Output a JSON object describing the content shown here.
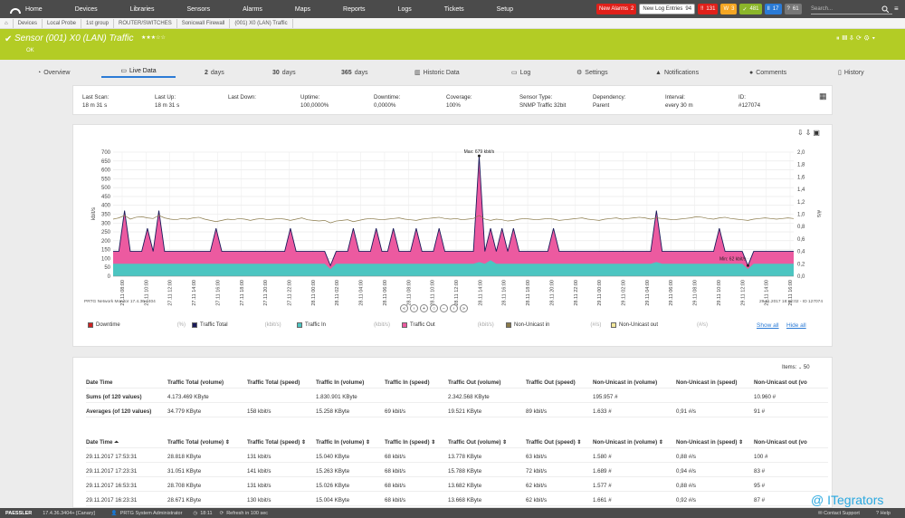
{
  "nav": {
    "items": [
      "Home",
      "Devices",
      "Libraries",
      "Sensors",
      "Alarms",
      "Maps",
      "Reports",
      "Logs",
      "Tickets",
      "Setup"
    ],
    "new_alarms": "New Alarms",
    "new_alarms_count": "2",
    "new_log": "New Log Entries",
    "new_log_count": "94",
    "badges": [
      {
        "icon": "!!",
        "count": "131",
        "color": "#e0201a"
      },
      {
        "icon": "W",
        "count": "3",
        "color": "#f5a623"
      },
      {
        "icon": "✓",
        "count": "481",
        "color": "#8bb62a"
      },
      {
        "icon": "II",
        "count": "17",
        "color": "#2b7bd6"
      },
      {
        "icon": "?",
        "count": "61",
        "color": "#777777"
      }
    ],
    "search_placeholder": "Search..."
  },
  "breadcrumbs": [
    "Devices",
    "Local Probe",
    "1st group",
    "ROUTER/SWITCHES",
    "Sonicwall Firewall",
    "(001) X0 (LAN) Traffic"
  ],
  "sensor": {
    "title": "Sensor (001) X0 (LAN) Traffic",
    "stars": "★★★☆☆",
    "status": "OK"
  },
  "tabs": {
    "overview": "Overview",
    "live": "Live Data",
    "d2": "2",
    "d30": "30",
    "d365": "365",
    "days": "days",
    "historic": "Historic Data",
    "log": "Log",
    "settings": "Settings",
    "notifications": "Notifications",
    "comments": "Comments",
    "history": "History"
  },
  "info": [
    {
      "label": "Last Scan:",
      "value": "18 m 31 s"
    },
    {
      "label": "Last Up:",
      "value": "18 m 31 s"
    },
    {
      "label": "Last Down:",
      "value": ""
    },
    {
      "label": "Uptime:",
      "value": "100,0000%"
    },
    {
      "label": "Downtime:",
      "value": "0,0000%"
    },
    {
      "label": "Coverage:",
      "value": "100%"
    },
    {
      "label": "Sensor Type:",
      "value": "SNMP Traffic 32bit"
    },
    {
      "label": "Dependency:",
      "value": "Parent"
    },
    {
      "label": "Interval:",
      "value": "every 30 m"
    },
    {
      "label": "ID:",
      "value": "#127074"
    }
  ],
  "chart_data": {
    "type": "area",
    "ylabel": "kbit/s",
    "y2label": "#/s",
    "ylim": [
      0,
      700
    ],
    "y2lim": [
      0,
      2.0
    ],
    "yticks": [
      "0",
      "50",
      "100",
      "150",
      "200",
      "250",
      "300",
      "350",
      "400",
      "450",
      "500",
      "550",
      "600",
      "650",
      "700"
    ],
    "y2ticks": [
      "0,0",
      "0,2",
      "0,4",
      "0,6",
      "0,8",
      "1,0",
      "1,2",
      "1,4",
      "1,6",
      "1,8",
      "2,0"
    ],
    "xticks": [
      "27.11 08:00",
      "27.11 10:00",
      "27.11 12:00",
      "27.11 14:00",
      "27.11 16:00",
      "27.11 18:00",
      "27.11 20:00",
      "27.11 22:00",
      "28.11 00:00",
      "28.11 02:00",
      "28.11 04:00",
      "28.11 06:00",
      "28.11 08:00",
      "28.11 10:00",
      "28.11 12:00",
      "28.11 14:00",
      "28.11 16:00",
      "28.11 18:00",
      "28.11 20:00",
      "28.11 22:00",
      "29.11 00:00",
      "29.11 02:00",
      "29.11 04:00",
      "29.11 06:00",
      "29.11 08:00",
      "29.11 10:00",
      "29.11 12:00",
      "29.11 14:00",
      "29.11 16:00"
    ],
    "max_label": "Max: 679 kbit/s",
    "min_label": "Min: 62 kbit/s",
    "footer_left": "PRTG Network Monitor 17.4.36.3404",
    "footer_right": "29.11.2017 18:12:02 - ID 127074",
    "series": [
      {
        "name": "Traffic Total",
        "unit": "(kbit/s)",
        "color": "#1a1a5a",
        "values": [
          140,
          140,
          370,
          140,
          140,
          140,
          270,
          140,
          370,
          140,
          140,
          140,
          140,
          140,
          140,
          140,
          140,
          140,
          270,
          140,
          140,
          140,
          140,
          140,
          140,
          140,
          140,
          140,
          140,
          140,
          140,
          270,
          140,
          140,
          140,
          140,
          140,
          140,
          60,
          140,
          140,
          140,
          270,
          140,
          140,
          140,
          270,
          140,
          140,
          270,
          140,
          140,
          140,
          270,
          140,
          140,
          140,
          270,
          140,
          140,
          140,
          140,
          140,
          140,
          679,
          140,
          270,
          140,
          270,
          140,
          270,
          140,
          140,
          140,
          140,
          140,
          140,
          270,
          140,
          140,
          140,
          140,
          140,
          140,
          140,
          140,
          140,
          140,
          140,
          140,
          140,
          140,
          140,
          140,
          140,
          370,
          140,
          140,
          140,
          140,
          140,
          140,
          140,
          140,
          140,
          140,
          270,
          140,
          140,
          140,
          140,
          60,
          140,
          140,
          140,
          140,
          140,
          140,
          140,
          140
        ]
      },
      {
        "name": "Traffic In",
        "unit": "(kbit/s)",
        "color": "#4cc5c1",
        "values": [
          70,
          70,
          70,
          70,
          70,
          70,
          70,
          70,
          70,
          70,
          70,
          70,
          70,
          70,
          70,
          70,
          70,
          70,
          70,
          70,
          70,
          70,
          70,
          70,
          70,
          70,
          70,
          70,
          70,
          70,
          70,
          70,
          70,
          70,
          70,
          70,
          70,
          70,
          40,
          70,
          70,
          70,
          70,
          70,
          70,
          70,
          70,
          70,
          70,
          70,
          70,
          70,
          70,
          70,
          70,
          70,
          70,
          70,
          70,
          70,
          70,
          70,
          70,
          70,
          80,
          70,
          90,
          70,
          70,
          70,
          70,
          70,
          70,
          70,
          70,
          70,
          70,
          70,
          70,
          70,
          70,
          70,
          70,
          70,
          70,
          70,
          70,
          70,
          70,
          70,
          70,
          70,
          70,
          70,
          70,
          80,
          70,
          70,
          70,
          70,
          70,
          70,
          70,
          70,
          70,
          70,
          70,
          70,
          70,
          70,
          70,
          40,
          70,
          70,
          70,
          70,
          70,
          70,
          70,
          70
        ]
      },
      {
        "name": "Non-Unicast in",
        "unit": "(#/s)",
        "color": "#8a7a4a",
        "values": [
          0.92,
          0.94,
          0.98,
          0.92,
          0.95,
          0.96,
          0.94,
          0.93,
          0.98,
          0.94,
          0.92,
          0.91,
          0.93,
          0.92,
          0.94,
          0.95,
          0.92,
          0.9,
          0.88,
          0.9,
          0.92,
          0.91,
          0.93,
          0.92,
          0.9,
          0.92,
          0.93,
          0.91,
          0.92,
          0.93,
          0.92,
          0.9,
          0.92,
          0.94,
          0.91,
          0.9,
          0.89,
          0.9,
          0.86,
          0.89,
          0.9,
          0.91,
          0.88,
          0.9,
          0.92,
          0.93,
          0.92,
          0.91,
          0.92,
          0.93,
          0.94,
          0.92,
          0.91,
          0.9,
          0.92,
          0.93,
          0.94,
          0.95,
          0.93,
          0.92,
          0.93,
          0.91,
          0.92,
          0.93,
          0.98,
          0.92,
          0.9,
          0.92,
          0.91,
          0.89,
          0.9,
          0.92,
          0.93,
          0.92,
          0.91,
          0.92,
          0.93,
          0.92,
          0.9,
          0.91,
          0.92,
          0.93,
          0.94,
          0.92,
          0.91,
          0.9,
          0.92,
          0.93,
          0.94,
          0.92,
          0.93,
          0.94,
          0.95,
          0.94,
          0.92,
          0.94,
          0.93,
          0.92,
          0.91,
          0.92,
          0.93,
          0.94,
          0.96,
          0.95,
          0.93,
          0.92,
          0.94,
          0.95,
          0.93,
          0.92,
          0.91,
          0.9,
          0.92,
          0.93,
          0.94,
          0.93,
          0.92,
          0.93,
          0.94,
          0.93
        ]
      }
    ]
  },
  "legend": [
    {
      "name": "Downtime",
      "unit": "(%)",
      "color": "#cc2222"
    },
    {
      "name": "Traffic Total",
      "unit": "(kbit/s)",
      "color": "#1a1a5a"
    },
    {
      "name": "Traffic In",
      "unit": "(kbit/s)",
      "color": "#4cc5c1"
    },
    {
      "name": "Traffic Out",
      "unit": "(kbit/s)",
      "color": "#ec5aa0"
    },
    {
      "name": "Non-Unicast in",
      "unit": "(#/s)",
      "color": "#8a7a4a"
    },
    {
      "name": "Non-Unicast out",
      "unit": "(#/s)",
      "color": "#f2e79a"
    }
  ],
  "show_all": "Show all",
  "hide_all": "Hide all",
  "items_label": "Items:",
  "items_value": "50",
  "summary": {
    "headers": [
      "Date Time",
      "Traffic Total (volume)",
      "Traffic Total (speed)",
      "Traffic In (volume)",
      "Traffic In (speed)",
      "Traffic Out (volume)",
      "Traffic Out (speed)",
      "Non-Unicast in (volume)",
      "Non-Unicast in (speed)",
      "Non-Unicast out (vo"
    ],
    "rows": [
      [
        "Sums (of 120 values)",
        "4.173.469 KByte",
        "",
        "1.830.901 KByte",
        "",
        "2.342.568 KByte",
        "",
        "195.957 #",
        "",
        "10.960 #"
      ],
      [
        "Averages (of 120 values)",
        "34.779 KByte",
        "158 kbit/s",
        "15.258 KByte",
        "69 kbit/s",
        "19.521 KByte",
        "89 kbit/s",
        "1.633 #",
        "0,91 #/s",
        "91 #"
      ]
    ]
  },
  "table": {
    "headers": [
      "Date Time ⏶",
      "Traffic Total (volume) ⇕",
      "Traffic Total (speed) ⇕",
      "Traffic In (volume) ⇕",
      "Traffic In (speed) ⇕",
      "Traffic Out (volume) ⇕",
      "Traffic Out (speed) ⇕",
      "Non-Unicast in (volume) ⇕",
      "Non-Unicast in (speed) ⇕",
      "Non-Unicast out (vo"
    ],
    "rows": [
      [
        "29.11.2017 17:53:31",
        "28.818 KByte",
        "131 kbit/s",
        "15.040 KByte",
        "68 kbit/s",
        "13.778 KByte",
        "63 kbit/s",
        "1.580 #",
        "0,88 #/s",
        "100 #"
      ],
      [
        "29.11.2017 17:23:31",
        "31.051 KByte",
        "141 kbit/s",
        "15.263 KByte",
        "68 kbit/s",
        "15.788 KByte",
        "72 kbit/s",
        "1.689 #",
        "0,94 #/s",
        "83 #"
      ],
      [
        "29.11.2017 16:53:31",
        "28.708 KByte",
        "131 kbit/s",
        "15.026 KByte",
        "68 kbit/s",
        "13.682 KByte",
        "62 kbit/s",
        "1.577 #",
        "0,88 #/s",
        "95 #"
      ],
      [
        "29.11.2017 16:23:31",
        "28.671 KByte",
        "130 kbit/s",
        "15.004 KByte",
        "68 kbit/s",
        "13.668 KByte",
        "62 kbit/s",
        "1.661 #",
        "0,92 #/s",
        "87 #"
      ]
    ]
  },
  "footer": {
    "brand": "PAESSLER",
    "version": "17.4.36.3404+ [Canary]",
    "user": "PRTG System Administrator",
    "time": "18:11",
    "refresh": "Refresh in 100 sec",
    "contact": "Contact Support",
    "help": "Help"
  },
  "watermark": "@ ITegrators"
}
